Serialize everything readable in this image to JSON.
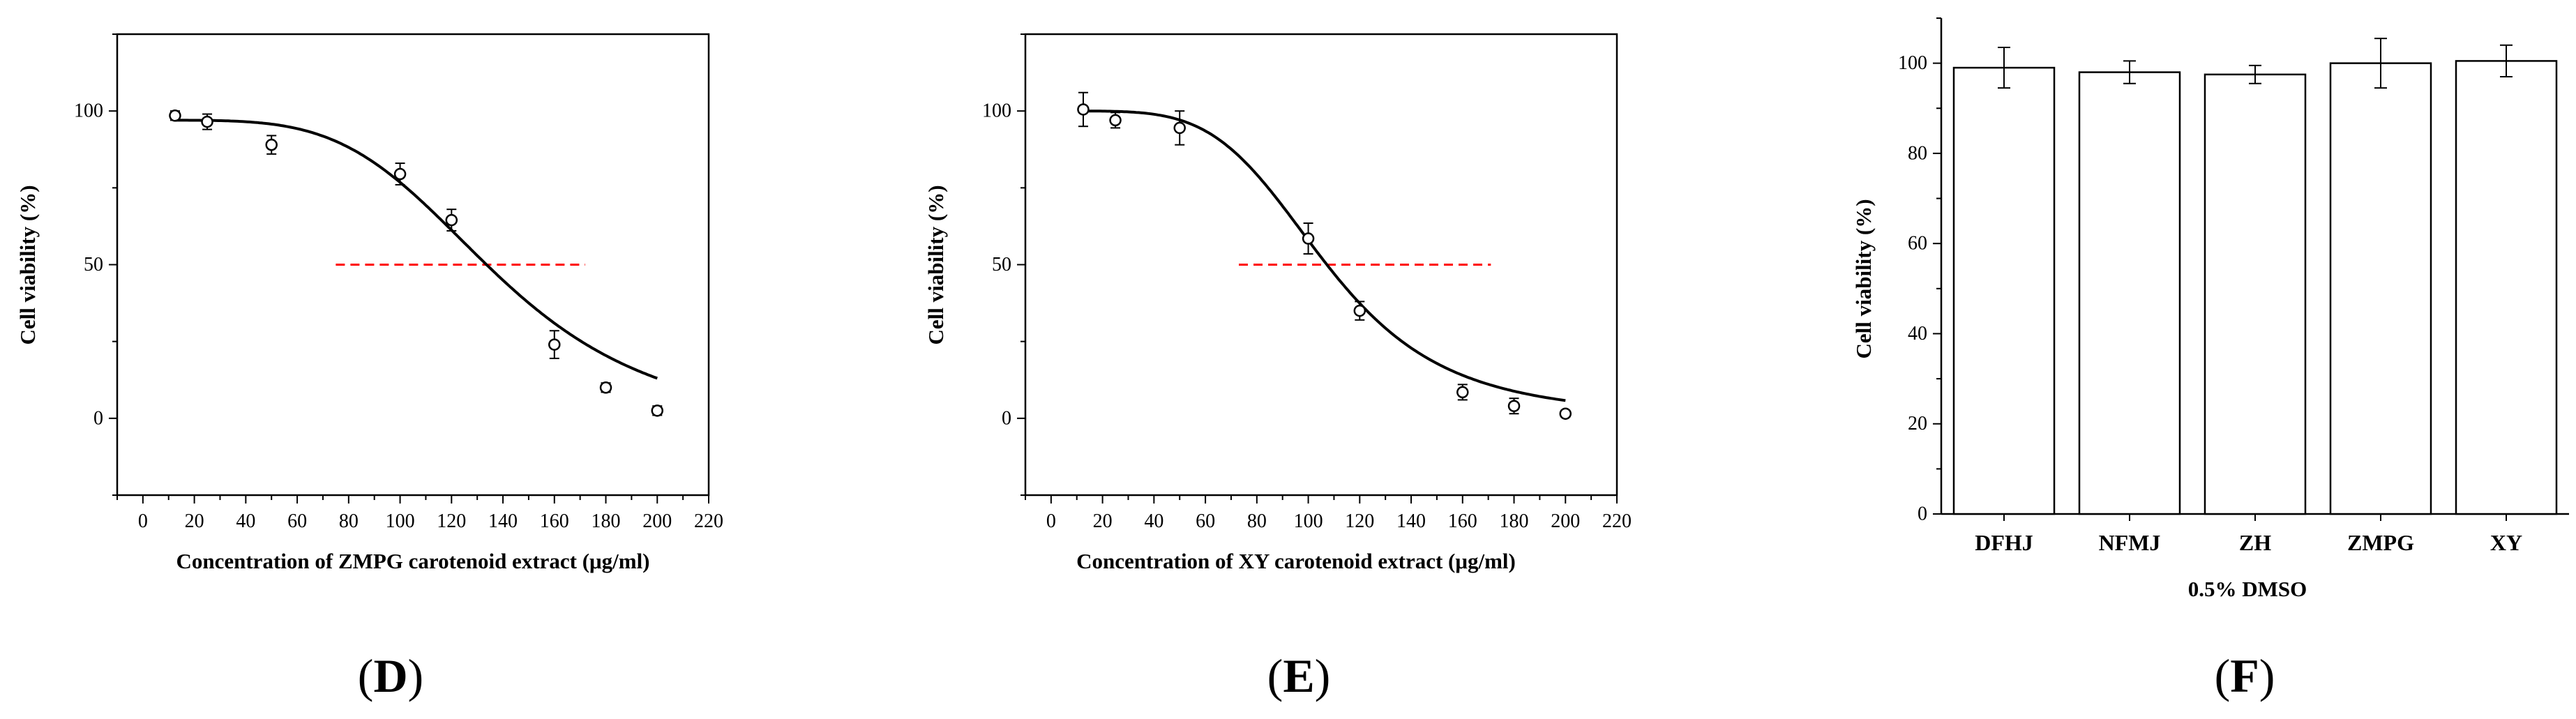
{
  "chart_data": [
    {
      "panel": "D",
      "type": "scatter",
      "panel_label": "(D)",
      "xlabel": "Concentration of ZMPG carotenoid extract (μg/ml)",
      "ylabel": "Cell viability (%)",
      "xlim": [
        -10,
        220
      ],
      "ylim": [
        -25,
        125
      ],
      "x_ticks": [
        0,
        20,
        40,
        60,
        80,
        100,
        120,
        140,
        160,
        180,
        200,
        220
      ],
      "y_ticks": [
        0,
        50,
        100
      ],
      "points": [
        {
          "x": 12.5,
          "y": 98.5,
          "err": 1.5
        },
        {
          "x": 25,
          "y": 96.5,
          "err": 2.5
        },
        {
          "x": 50,
          "y": 89,
          "err": 3
        },
        {
          "x": 100,
          "y": 79.5,
          "err": 3.5
        },
        {
          "x": 120,
          "y": 64.5,
          "err": 3.5
        },
        {
          "x": 160,
          "y": 24,
          "err": 4.5
        },
        {
          "x": 180,
          "y": 10,
          "err": 1.5
        },
        {
          "x": 200,
          "y": 2.5,
          "err": 1.5
        }
      ],
      "fit": {
        "model": "logistic",
        "top": 97,
        "bottom": -4,
        "ic50": 138,
        "hill": 4.3,
        "x_from": 12.5,
        "x_to": 200
      },
      "reference_line": {
        "y": 50,
        "x_from": 75,
        "x_to": 172,
        "color": "#ff0000"
      }
    },
    {
      "panel": "E",
      "type": "scatter",
      "panel_label": "(E)",
      "xlabel": "Concentration of XY carotenoid extract (μg/ml)",
      "ylabel": "Cell viability (%)",
      "xlim": [
        -10,
        220
      ],
      "ylim": [
        -25,
        125
      ],
      "x_ticks": [
        0,
        20,
        40,
        60,
        80,
        100,
        120,
        140,
        160,
        180,
        200,
        220
      ],
      "y_ticks": [
        0,
        50,
        100
      ],
      "points": [
        {
          "x": 12.5,
          "y": 100.5,
          "err": 5.5
        },
        {
          "x": 25,
          "y": 97,
          "err": 2.5
        },
        {
          "x": 50,
          "y": 94.5,
          "err": 5.5
        },
        {
          "x": 100,
          "y": 58.5,
          "err": 5
        },
        {
          "x": 120,
          "y": 35,
          "err": 3
        },
        {
          "x": 160,
          "y": 8.5,
          "err": 2.5
        },
        {
          "x": 180,
          "y": 4,
          "err": 2.5
        },
        {
          "x": 200,
          "y": 1.5,
          "err": 1
        }
      ],
      "fit": {
        "model": "logistic",
        "top": 100,
        "bottom": 0.5,
        "ic50": 107,
        "hill": 4.6,
        "x_from": 12.5,
        "x_to": 200
      },
      "reference_line": {
        "y": 50,
        "x_from": 73,
        "x_to": 171,
        "color": "#ff0000"
      }
    },
    {
      "panel": "F",
      "type": "bar",
      "panel_label": "(F)",
      "xlabel": "0.5% DMSO",
      "ylabel": "Cell viability (%)",
      "ylim": [
        0,
        110
      ],
      "y_ticks": [
        0,
        20,
        40,
        60,
        80,
        100
      ],
      "categories": [
        "DFHJ",
        "NFMJ",
        "ZH",
        "ZMPG",
        "XY"
      ],
      "values": [
        99,
        98,
        97.5,
        100,
        100.5
      ],
      "errors": [
        4.5,
        2.5,
        2,
        5.5,
        3.5
      ]
    }
  ],
  "colors": {
    "axis": "#000000",
    "reference": "#ff0000",
    "bar_fill": "#ffffff"
  }
}
